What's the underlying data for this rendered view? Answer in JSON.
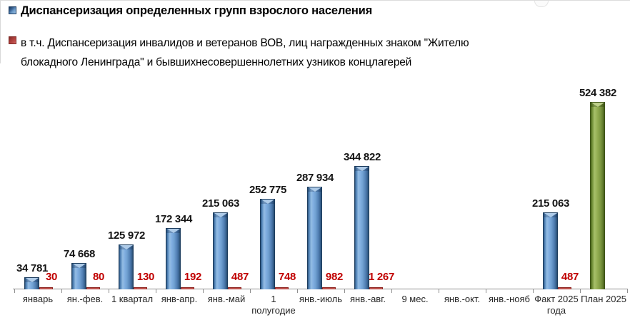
{
  "legend": {
    "items": [
      {
        "label": "Диспансеризация определенных групп взрослого населения",
        "color": "#4f81bd",
        "marker": "square"
      },
      {
        "label_lines": [
          "в т.ч. Диспансеризация инвалидов и ветеранов ВОВ, лиц награжденных знаком \"Жителю",
          "блокадного Ленинграда\" и бывшихнесовершеннолетних  узников концлагерей"
        ],
        "color": "#c0504d",
        "marker": "square"
      }
    ]
  },
  "chart_data": {
    "type": "bar",
    "categories": [
      "январь",
      "ян.-фев.",
      "1 квартал",
      "янв-апр.",
      "янв.-май",
      "1\nполугодие",
      "янв.-июль",
      "янв.-авг.",
      "9 мес.",
      "янв.-окт.",
      "янв.-нояб",
      "Факт 2025\nгода",
      "План 2025"
    ],
    "series": [
      {
        "name": "Диспансеризация определенных групп взрослого населения",
        "color": "#4f81bd",
        "values": [
          34781,
          74668,
          125972,
          172344,
          215063,
          252775,
          287934,
          344822,
          null,
          null,
          null,
          215063,
          null
        ],
        "value_labels": [
          "34 781",
          "74 668",
          "125 972",
          "172 344",
          "215 063",
          "252 775",
          "287 934",
          "344 822",
          null,
          null,
          null,
          "215 063",
          null
        ]
      },
      {
        "name": "в т.ч. Диспансеризация инвалидов и ветеранов ВОВ, лиц награжденных знаком \"Жителю блокадного Ленинграда\" и бывшихнесовершеннолетних узников концлагерей",
        "color": "#c0504d",
        "values": [
          30,
          80,
          130,
          192,
          487,
          748,
          982,
          1267,
          null,
          null,
          null,
          487,
          null
        ],
        "value_labels": [
          "30",
          "80",
          "130",
          "192",
          "487",
          "748",
          "982",
          "1 267",
          null,
          null,
          null,
          "487",
          null
        ]
      },
      {
        "name": "План 2025",
        "color": "#77933c",
        "values": [
          null,
          null,
          null,
          null,
          null,
          null,
          null,
          null,
          null,
          null,
          null,
          null,
          524382
        ],
        "value_labels": [
          null,
          null,
          null,
          null,
          null,
          null,
          null,
          null,
          null,
          null,
          null,
          null,
          "524 382"
        ]
      }
    ],
    "ylim": [
      0,
      550000
    ],
    "grid": false,
    "legend_position": "top-left",
    "axis_visible": "x-only"
  }
}
